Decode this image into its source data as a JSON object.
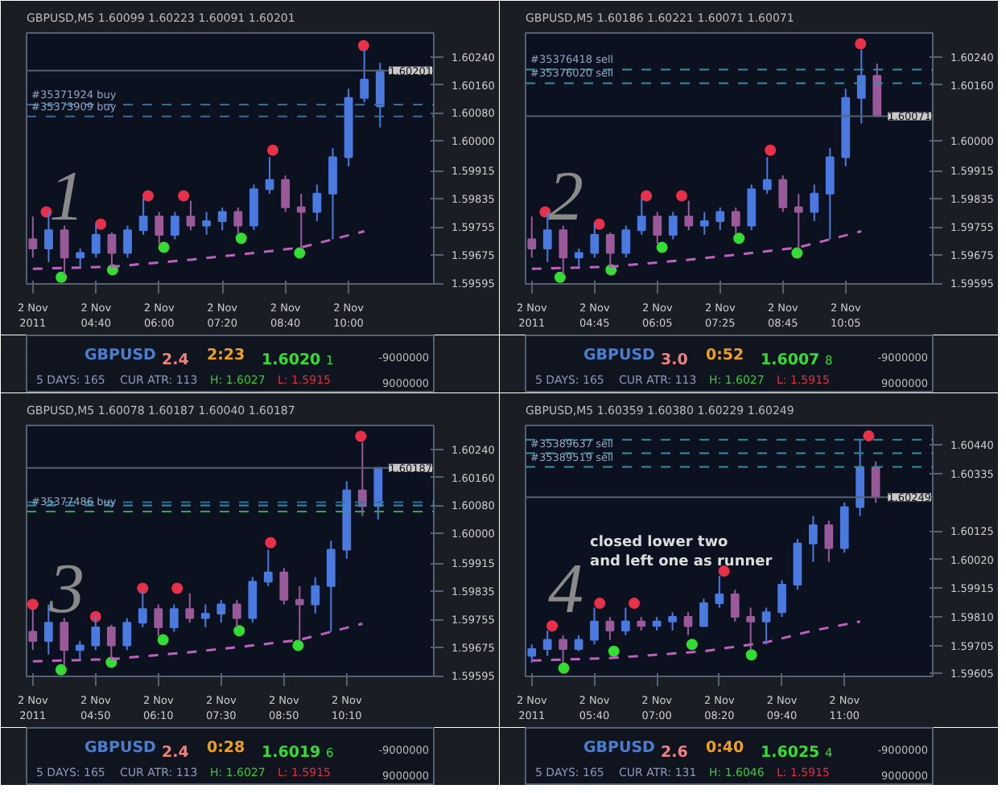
{
  "chart_data": [
    {
      "type": "candlestick",
      "marker": "circle",
      "x": [
        "2011-11-02T03:20",
        "2011-11-02T03:40",
        "2011-11-02T04:00",
        "2011-11-02T04:20",
        "2011-11-02T04:40",
        "2011-11-02T05:00",
        "2011-11-02T05:20",
        "2011-11-02T05:40",
        "2011-11-02T06:00",
        "2011-11-02T06:20",
        "2011-11-02T06:40",
        "2011-11-02T07:00",
        "2011-11-02T07:20",
        "2011-11-02T07:40",
        "2011-11-02T08:00",
        "2011-11-02T08:20",
        "2011-11-02T08:40",
        "2011-11-02T09:00",
        "2011-11-02T09:20",
        "2011-11-02T09:40",
        "2011-11-02T10:00",
        "2011-11-02T10:20",
        "2011-11-02T10:40"
      ],
      "ohlc": [
        [
          1.5972,
          1.59785,
          1.59668,
          1.59694
        ],
        [
          1.59694,
          1.59798,
          1.59655,
          1.59746
        ],
        [
          1.59746,
          1.59759,
          1.5962,
          1.59668
        ],
        [
          1.59668,
          1.59694,
          1.59642,
          1.59681
        ],
        [
          1.59681,
          1.59766,
          1.59668,
          1.59733
        ],
        [
          1.59733,
          1.5974,
          1.59642,
          1.59681
        ],
        [
          1.59681,
          1.59759,
          1.59668,
          1.59746
        ],
        [
          1.59746,
          1.59837,
          1.59733,
          1.59785
        ],
        [
          1.59785,
          1.59798,
          1.59707,
          1.59733
        ],
        [
          1.59733,
          1.59798,
          1.5972,
          1.59785
        ],
        [
          1.59785,
          1.5983,
          1.59746,
          1.59759
        ],
        [
          1.59759,
          1.59798,
          1.59733,
          1.59772
        ],
        [
          1.59772,
          1.59811,
          1.59746,
          1.59798
        ],
        [
          1.59798,
          1.59811,
          1.59733,
          1.59759
        ],
        [
          1.59759,
          1.59876,
          1.59746,
          1.59863
        ],
        [
          1.59863,
          1.59954,
          1.5985,
          1.59889
        ],
        [
          1.59889,
          1.59902,
          1.59798,
          1.59811
        ],
        [
          1.59811,
          1.5985,
          1.59694,
          1.59798
        ],
        [
          1.59798,
          1.59876,
          1.59772,
          1.5985
        ],
        [
          1.5985,
          1.5998,
          1.5972,
          1.59954
        ],
        [
          1.59954,
          1.60149,
          1.59928,
          1.60123
        ],
        [
          1.60123,
          1.6026,
          1.6011,
          1.60175
        ],
        [
          1.60099,
          1.60223,
          1.60039,
          1.60201
        ]
      ],
      "series": [
        {
          "type": "scatter",
          "color": "#e8304a",
          "x": [
            "2011-11-02T03:37",
            "2011-11-02T04:46",
            "2011-11-02T05:46",
            "2011-11-02T06:31",
            "2011-11-02T08:24",
            "2011-11-02T10:19"
          ],
          "values": [
            1.59798,
            1.59763,
            1.59844,
            1.59844,
            1.59974,
            1.60272
          ]
        },
        {
          "type": "scatter",
          "color": "#33dd33",
          "x": [
            "2011-11-02T03:56",
            "2011-11-02T05:01",
            "2011-11-02T06:06",
            "2011-11-02T07:44",
            "2011-11-02T08:58"
          ],
          "values": [
            1.59612,
            1.59633,
            1.59697,
            1.59723,
            1.59681
          ]
        },
        {
          "type": "line",
          "color": "#c060c0",
          "line_style": "dashed",
          "marker": "none",
          "x": [
            "2011-11-02T03:20",
            "2011-11-02T05:00",
            "2011-11-02T06:40",
            "2011-11-02T08:00",
            "2011-11-02T09:00",
            "2011-11-02T09:40",
            "2011-11-02T10:20"
          ],
          "values": [
            1.59636,
            1.59642,
            1.59662,
            1.59681,
            1.59697,
            1.5972,
            1.59743
          ]
        }
      ],
      "xlim": [
        "2011-11-02T03:12",
        "2011-11-02T11:48"
      ],
      "xticks": [
        {
          "value": "2011-11-02T03:20",
          "label": "2 Nov 2011"
        },
        {
          "value": "2011-11-02T04:40",
          "label": "2 Nov 04:40"
        },
        {
          "value": "2011-11-02T06:00",
          "label": "2 Nov 06:00"
        },
        {
          "value": "2011-11-02T07:20",
          "label": "2 Nov 07:20"
        },
        {
          "value": "2011-11-02T08:40",
          "label": "2 Nov 08:40"
        },
        {
          "value": "2011-11-02T10:00",
          "label": "2 Nov 10:00"
        }
      ],
      "ylim": [
        1.59593,
        1.60308
      ],
      "yticks": [
        {
          "value": 1.59595,
          "label": "1.59595"
        },
        {
          "value": 1.59675,
          "label": "1.59675"
        },
        {
          "value": 1.59755,
          "label": "1.59755"
        },
        {
          "value": 1.59835,
          "label": "1.59835"
        },
        {
          "value": 1.59915,
          "label": "1.59915"
        },
        {
          "value": 1.6,
          "label": "1.60000"
        },
        {
          "value": 1.6008,
          "label": "1.60080"
        },
        {
          "value": 1.6016,
          "label": "1.60160"
        },
        {
          "value": 1.6024,
          "label": "1.60240"
        }
      ],
      "ref_lines": [
        {
          "axis": "y",
          "value": 1.60104,
          "label": "#35371924 buy",
          "color": "#2f6f9f",
          "line_style": "dashed"
        },
        {
          "axis": "y",
          "value": 1.6007,
          "label": "#35373909 buy",
          "color": "#2f6f9f",
          "line_style": "dashed"
        },
        {
          "axis": "y",
          "value": 1.60201,
          "label": "1.60201",
          "color": "#556070",
          "line_style": "solid"
        }
      ],
      "annotations": [
        "GBPUSD,M5  1.60099 1.60223 1.60091 1.60201",
        "1",
        "GBPUSD",
        "2.4",
        "2:23",
        "1.6020",
        "1",
        "5 DAYS: 165",
        "CUR ATR: 113",
        "H: 1.6027",
        "L: 1.5915",
        "-9000000",
        "9000000"
      ]
    },
    {
      "type": "candlestick",
      "marker": "circle",
      "x": [
        "2011-11-02T03:25",
        "2011-11-02T03:45",
        "2011-11-02T04:05",
        "2011-11-02T04:25",
        "2011-11-02T04:45",
        "2011-11-02T05:05",
        "2011-11-02T05:25",
        "2011-11-02T05:45",
        "2011-11-02T06:05",
        "2011-11-02T06:25",
        "2011-11-02T06:45",
        "2011-11-02T07:05",
        "2011-11-02T07:25",
        "2011-11-02T07:45",
        "2011-11-02T08:05",
        "2011-11-02T08:25",
        "2011-11-02T08:45",
        "2011-11-02T09:05",
        "2011-11-02T09:25",
        "2011-11-02T09:45",
        "2011-11-02T10:05",
        "2011-11-02T10:25",
        "2011-11-02T10:45"
      ],
      "ohlc": [
        [
          1.5972,
          1.59785,
          1.59668,
          1.59694
        ],
        [
          1.59694,
          1.59798,
          1.59655,
          1.59746
        ],
        [
          1.59746,
          1.59759,
          1.5962,
          1.59668
        ],
        [
          1.59668,
          1.59694,
          1.59642,
          1.59681
        ],
        [
          1.59681,
          1.59766,
          1.59668,
          1.59733
        ],
        [
          1.59733,
          1.5974,
          1.59642,
          1.59681
        ],
        [
          1.59681,
          1.59759,
          1.59668,
          1.59746
        ],
        [
          1.59746,
          1.59837,
          1.59733,
          1.59785
        ],
        [
          1.59785,
          1.59798,
          1.59707,
          1.59733
        ],
        [
          1.59733,
          1.59798,
          1.5972,
          1.59785
        ],
        [
          1.59785,
          1.5983,
          1.59746,
          1.59759
        ],
        [
          1.59759,
          1.59798,
          1.59733,
          1.59772
        ],
        [
          1.59772,
          1.59811,
          1.59746,
          1.59798
        ],
        [
          1.59798,
          1.59811,
          1.59733,
          1.59759
        ],
        [
          1.59759,
          1.59876,
          1.59746,
          1.59863
        ],
        [
          1.59863,
          1.59954,
          1.5985,
          1.59889
        ],
        [
          1.59889,
          1.59902,
          1.59798,
          1.59811
        ],
        [
          1.59811,
          1.5985,
          1.59694,
          1.59798
        ],
        [
          1.59798,
          1.59876,
          1.59772,
          1.5985
        ],
        [
          1.5985,
          1.5998,
          1.5972,
          1.59954
        ],
        [
          1.59954,
          1.60149,
          1.59928,
          1.60123
        ],
        [
          1.60123,
          1.6026,
          1.6005,
          1.60186
        ],
        [
          1.60186,
          1.60221,
          1.60071,
          1.60071
        ]
      ],
      "series": [
        {
          "type": "scatter",
          "color": "#e8304a",
          "x": [
            "2011-11-02T03:42",
            "2011-11-02T04:51",
            "2011-11-02T05:51",
            "2011-11-02T06:36",
            "2011-11-02T08:29",
            "2011-11-02T10:24"
          ],
          "values": [
            1.59798,
            1.59763,
            1.59844,
            1.59844,
            1.59974,
            1.60277
          ]
        },
        {
          "type": "scatter",
          "color": "#33dd33",
          "x": [
            "2011-11-02T04:01",
            "2011-11-02T05:06",
            "2011-11-02T06:11",
            "2011-11-02T07:49",
            "2011-11-02T09:03"
          ],
          "values": [
            1.59612,
            1.59633,
            1.59697,
            1.59723,
            1.59681
          ]
        },
        {
          "type": "line",
          "color": "#c060c0",
          "line_style": "dashed",
          "marker": "none",
          "x": [
            "2011-11-02T03:25",
            "2011-11-02T05:05",
            "2011-11-02T06:45",
            "2011-11-02T08:05",
            "2011-11-02T09:05",
            "2011-11-02T09:45",
            "2011-11-02T10:25"
          ],
          "values": [
            1.59636,
            1.59642,
            1.59662,
            1.59681,
            1.59697,
            1.5972,
            1.59743
          ]
        }
      ],
      "xlim": [
        "2011-11-02T03:17",
        "2011-11-02T11:56"
      ],
      "xticks": [
        {
          "value": "2011-11-02T03:25",
          "label": "2 Nov 2011"
        },
        {
          "value": "2011-11-02T04:45",
          "label": "2 Nov 04:45"
        },
        {
          "value": "2011-11-02T06:05",
          "label": "2 Nov 06:05"
        },
        {
          "value": "2011-11-02T07:25",
          "label": "2 Nov 07:25"
        },
        {
          "value": "2011-11-02T08:45",
          "label": "2 Nov 08:45"
        },
        {
          "value": "2011-11-02T10:05",
          "label": "2 Nov 10:05"
        }
      ],
      "ylim": [
        1.59593,
        1.60308
      ],
      "yticks": [
        {
          "value": 1.59595,
          "label": "1.59595"
        },
        {
          "value": 1.59675,
          "label": "1.59675"
        },
        {
          "value": 1.59755,
          "label": "1.59755"
        },
        {
          "value": 1.59835,
          "label": "1.59835"
        },
        {
          "value": 1.59915,
          "label": "1.59915"
        },
        {
          "value": 1.6,
          "label": "1.60000"
        },
        {
          "value": 1.6016,
          "label": "1.60160"
        },
        {
          "value": 1.6024,
          "label": "1.60240"
        }
      ],
      "ref_lines": [
        {
          "axis": "y",
          "value": 1.60204,
          "label": "#35376418 sell",
          "color": "#2f8fa0",
          "line_style": "dashed"
        },
        {
          "axis": "y",
          "value": 1.60165,
          "label": "#35376020 sell",
          "color": "#2f8fa0",
          "line_style": "dashed"
        },
        {
          "axis": "y",
          "value": 1.60071,
          "label": "1.60071",
          "color": "#556070",
          "line_style": "solid"
        }
      ],
      "annotations": [
        "GBPUSD,M5  1.60186 1.60221 1.60071 1.60071",
        "2",
        "GBPUSD",
        "3.0",
        "0:52",
        "1.6007",
        "8",
        "5 DAYS: 165",
        "CUR ATR: 113",
        "H: 1.6027",
        "L: 1.5915",
        "-9000000",
        "9000000"
      ]
    },
    {
      "type": "candlestick",
      "marker": "circle",
      "x": [
        "2011-11-02T03:30",
        "2011-11-02T03:50",
        "2011-11-02T04:10",
        "2011-11-02T04:30",
        "2011-11-02T04:50",
        "2011-11-02T05:10",
        "2011-11-02T05:30",
        "2011-11-02T05:50",
        "2011-11-02T06:10",
        "2011-11-02T06:30",
        "2011-11-02T06:50",
        "2011-11-02T07:10",
        "2011-11-02T07:30",
        "2011-11-02T07:50",
        "2011-11-02T08:10",
        "2011-11-02T08:30",
        "2011-11-02T08:50",
        "2011-11-02T09:10",
        "2011-11-02T09:30",
        "2011-11-02T09:50",
        "2011-11-02T10:10",
        "2011-11-02T10:30",
        "2011-11-02T10:50"
      ],
      "ohlc": [
        [
          1.5972,
          1.59785,
          1.59668,
          1.59694
        ],
        [
          1.59694,
          1.59798,
          1.59655,
          1.59746
        ],
        [
          1.59746,
          1.59759,
          1.5962,
          1.59668
        ],
        [
          1.59668,
          1.59694,
          1.59642,
          1.59681
        ],
        [
          1.59681,
          1.59766,
          1.59668,
          1.59733
        ],
        [
          1.59733,
          1.5974,
          1.59642,
          1.59681
        ],
        [
          1.59681,
          1.59759,
          1.59668,
          1.59746
        ],
        [
          1.59746,
          1.59837,
          1.59733,
          1.59785
        ],
        [
          1.59785,
          1.59798,
          1.59707,
          1.59733
        ],
        [
          1.59733,
          1.59798,
          1.5972,
          1.59785
        ],
        [
          1.59785,
          1.5983,
          1.59746,
          1.59759
        ],
        [
          1.59759,
          1.59798,
          1.59733,
          1.59772
        ],
        [
          1.59772,
          1.59811,
          1.59746,
          1.59798
        ],
        [
          1.59798,
          1.59811,
          1.59733,
          1.59759
        ],
        [
          1.59759,
          1.59876,
          1.59746,
          1.59863
        ],
        [
          1.59863,
          1.59954,
          1.5985,
          1.59889
        ],
        [
          1.59889,
          1.59902,
          1.59798,
          1.59811
        ],
        [
          1.59811,
          1.5985,
          1.59694,
          1.59798
        ],
        [
          1.59798,
          1.59876,
          1.59772,
          1.5985
        ],
        [
          1.5985,
          1.5998,
          1.5972,
          1.59954
        ],
        [
          1.59954,
          1.60149,
          1.59928,
          1.60123
        ],
        [
          1.60123,
          1.6026,
          1.6005,
          1.60078
        ],
        [
          1.60078,
          1.60187,
          1.6004,
          1.60187
        ]
      ],
      "series": [
        {
          "type": "scatter",
          "color": "#e8304a",
          "x": [
            "2011-11-02T03:30",
            "2011-11-02T04:50",
            "2011-11-02T05:50",
            "2011-11-02T06:34",
            "2011-11-02T08:33",
            "2011-11-02T10:28"
          ],
          "values": [
            1.59798,
            1.59763,
            1.59844,
            1.59844,
            1.59974,
            1.60277
          ]
        },
        {
          "type": "scatter",
          "color": "#33dd33",
          "x": [
            "2011-11-02T04:06",
            "2011-11-02T05:10",
            "2011-11-02T06:16",
            "2011-11-02T07:53",
            "2011-11-02T09:08"
          ],
          "values": [
            1.59612,
            1.59633,
            1.59697,
            1.59723,
            1.59681
          ]
        },
        {
          "type": "line",
          "color": "#c060c0",
          "line_style": "dashed",
          "marker": "none",
          "x": [
            "2011-11-02T03:30",
            "2011-11-02T05:10",
            "2011-11-02T06:50",
            "2011-11-02T08:10",
            "2011-11-02T09:10",
            "2011-11-02T09:50",
            "2011-11-02T10:30"
          ],
          "values": [
            1.59636,
            1.59642,
            1.59662,
            1.59681,
            1.59697,
            1.5972,
            1.59743
          ]
        }
      ],
      "xlim": [
        "2011-11-02T03:22",
        "2011-11-02T12:01"
      ],
      "xticks": [
        {
          "value": "2011-11-02T03:30",
          "label": "2 Nov 2011"
        },
        {
          "value": "2011-11-02T04:50",
          "label": "2 Nov 04:50"
        },
        {
          "value": "2011-11-02T06:10",
          "label": "2 Nov 06:10"
        },
        {
          "value": "2011-11-02T07:30",
          "label": "2 Nov 07:30"
        },
        {
          "value": "2011-11-02T08:50",
          "label": "2 Nov 08:50"
        },
        {
          "value": "2011-11-02T10:10",
          "label": "2 Nov 10:10"
        }
      ],
      "ylim": [
        1.59593,
        1.60308
      ],
      "yticks": [
        {
          "value": 1.59595,
          "label": "1.59595"
        },
        {
          "value": 1.59675,
          "label": "1.59675"
        },
        {
          "value": 1.59755,
          "label": "1.59755"
        },
        {
          "value": 1.59835,
          "label": "1.59835"
        },
        {
          "value": 1.59915,
          "label": "1.59915"
        },
        {
          "value": 1.6,
          "label": "1.60000"
        },
        {
          "value": 1.6008,
          "label": "1.60080"
        },
        {
          "value": 1.6016,
          "label": "1.60160"
        },
        {
          "value": 1.6024,
          "label": "1.60240"
        }
      ],
      "ref_lines": [
        {
          "axis": "y",
          "value": 1.60089,
          "label": null,
          "color": "#2f6f9f",
          "line_style": "dashed"
        },
        {
          "axis": "y",
          "value": 1.6008,
          "label": null,
          "color": "#2f8fa0",
          "line_style": "dashed"
        },
        {
          "axis": "y",
          "value": 1.60063,
          "label": "#35377486 buy",
          "color": "#2f9f70",
          "line_style": "dashed"
        },
        {
          "axis": "y",
          "value": 1.60187,
          "label": "1.60187",
          "color": "#556070",
          "line_style": "solid"
        }
      ],
      "annotations": [
        "GBPUSD,M5  1.60078 1.60187 1.60040 1.60187",
        "3",
        "GBPUSD",
        "2.4",
        "0:28",
        "1.6019",
        "6",
        "5 DAYS: 165",
        "CUR ATR: 113",
        "H: 1.6027",
        "L: 1.5915",
        "-9000000",
        "9000000"
      ]
    },
    {
      "type": "candlestick",
      "marker": "circle",
      "x": [
        "2011-11-02T04:20",
        "2011-11-02T04:40",
        "2011-11-02T05:00",
        "2011-11-02T05:20",
        "2011-11-02T05:40",
        "2011-11-02T06:00",
        "2011-11-02T06:20",
        "2011-11-02T06:40",
        "2011-11-02T07:00",
        "2011-11-02T07:20",
        "2011-11-02T07:40",
        "2011-11-02T08:00",
        "2011-11-02T08:20",
        "2011-11-02T08:40",
        "2011-11-02T09:00",
        "2011-11-02T09:20",
        "2011-11-02T09:40",
        "2011-11-02T10:00",
        "2011-11-02T10:20",
        "2011-11-02T10:40",
        "2011-11-02T11:00",
        "2011-11-02T11:20",
        "2011-11-02T11:40"
      ],
      "ohlc": [
        [
          1.59667,
          1.59709,
          1.59642,
          1.59692
        ],
        [
          1.59692,
          1.5976,
          1.59667,
          1.59726
        ],
        [
          1.59726,
          1.59743,
          1.59642,
          1.59692
        ],
        [
          1.59692,
          1.59743,
          1.59684,
          1.59726
        ],
        [
          1.59726,
          1.59844,
          1.59709,
          1.59793
        ],
        [
          1.59793,
          1.5981,
          1.59726,
          1.5976
        ],
        [
          1.5976,
          1.59844,
          1.59743,
          1.59793
        ],
        [
          1.59793,
          1.5981,
          1.5976,
          1.59777
        ],
        [
          1.59777,
          1.5981,
          1.5976,
          1.59793
        ],
        [
          1.59793,
          1.59827,
          1.5976,
          1.5981
        ],
        [
          1.5981,
          1.59827,
          1.59743,
          1.59776
        ],
        [
          1.59776,
          1.59877,
          1.59776,
          1.5986
        ],
        [
          1.5986,
          1.59961,
          1.59844,
          1.59893
        ],
        [
          1.59893,
          1.5991,
          1.59793,
          1.5981
        ],
        [
          1.5981,
          1.59844,
          1.59692,
          1.59793
        ],
        [
          1.59793,
          1.59844,
          1.59709,
          1.59827
        ],
        [
          1.59827,
          1.59944,
          1.5981,
          1.59928
        ],
        [
          1.59928,
          1.60096,
          1.5991,
          1.60079
        ],
        [
          1.60079,
          1.6018,
          1.60012,
          1.60146
        ],
        [
          1.60146,
          1.60163,
          1.60012,
          1.60062
        ],
        [
          1.60062,
          1.6023,
          1.60045,
          1.60213
        ],
        [
          1.60213,
          1.60457,
          1.6018,
          1.60359
        ],
        [
          1.60359,
          1.6038,
          1.60229,
          1.60249
        ]
      ],
      "series": [
        {
          "type": "scatter",
          "color": "#e8304a",
          "x": [
            "2011-11-02T04:46",
            "2011-11-02T05:47",
            "2011-11-02T06:31",
            "2011-11-02T08:26",
            "2011-11-02T11:31"
          ],
          "values": [
            1.59777,
            1.5986,
            1.5986,
            1.59978,
            1.60474
          ]
        },
        {
          "type": "scatter",
          "color": "#33dd33",
          "x": [
            "2011-11-02T05:01",
            "2011-11-02T06:05",
            "2011-11-02T07:45",
            "2011-11-02T09:01"
          ],
          "values": [
            1.59622,
            1.59684,
            1.59709,
            1.59671
          ]
        },
        {
          "type": "line",
          "color": "#c060c0",
          "line_style": "dashed",
          "marker": "none",
          "x": [
            "2011-11-02T04:20",
            "2011-11-02T06:00",
            "2011-11-02T08:00",
            "2011-11-02T09:20",
            "2011-11-02T10:20",
            "2011-11-02T11:20"
          ],
          "values": [
            1.5965,
            1.59659,
            1.59684,
            1.59717,
            1.5976,
            1.59793
          ]
        }
      ],
      "xlim": [
        "2011-11-02T04:12",
        "2011-11-02T12:53"
      ],
      "xticks": [
        {
          "value": "2011-11-02T04:20",
          "label": "2 Nov 2011"
        },
        {
          "value": "2011-11-02T05:40",
          "label": "2 Nov 05:40"
        },
        {
          "value": "2011-11-02T07:00",
          "label": "2 Nov 07:00"
        },
        {
          "value": "2011-11-02T08:20",
          "label": "2 Nov 08:20"
        },
        {
          "value": "2011-11-02T09:40",
          "label": "2 Nov 09:40"
        },
        {
          "value": "2011-11-02T11:00",
          "label": "2 Nov 11:00"
        }
      ],
      "ylim": [
        1.59592,
        1.60512
      ],
      "yticks": [
        {
          "value": 1.59605,
          "label": "1.59605"
        },
        {
          "value": 1.59705,
          "label": "1.59705"
        },
        {
          "value": 1.5981,
          "label": "1.59810"
        },
        {
          "value": 1.59915,
          "label": "1.59915"
        },
        {
          "value": 1.6002,
          "label": "1.60020"
        },
        {
          "value": 1.60125,
          "label": "1.60125"
        },
        {
          "value": 1.60335,
          "label": "1.60335"
        },
        {
          "value": 1.6044,
          "label": "1.60440"
        }
      ],
      "ref_lines": [
        {
          "axis": "y",
          "value": 1.6046,
          "label": null,
          "color": "#2f8fa0",
          "line_style": "dashed"
        },
        {
          "axis": "y",
          "value": 1.6041,
          "label": "#35389637 sell",
          "color": "#2f8fa0",
          "line_style": "dashed"
        },
        {
          "axis": "y",
          "value": 1.6036,
          "label": "#35389519 sell",
          "color": "#2f8fa0",
          "line_style": "dashed"
        },
        {
          "axis": "y",
          "value": 1.60249,
          "label": "1.60249",
          "color": "#556070",
          "line_style": "solid"
        }
      ],
      "annotations": [
        "GBPUSD,M5  1.60359 1.60380 1.60229 1.60249",
        "4",
        "GBPUSD",
        "2.6",
        "0:40",
        "1.6025",
        "4",
        "5 DAYS: 165",
        "CUR ATR: 131",
        "H: 1.6046",
        "L: 1.5915",
        "-9000000",
        "9000000",
        "closed lower two\nand left one as runner"
      ]
    }
  ]
}
